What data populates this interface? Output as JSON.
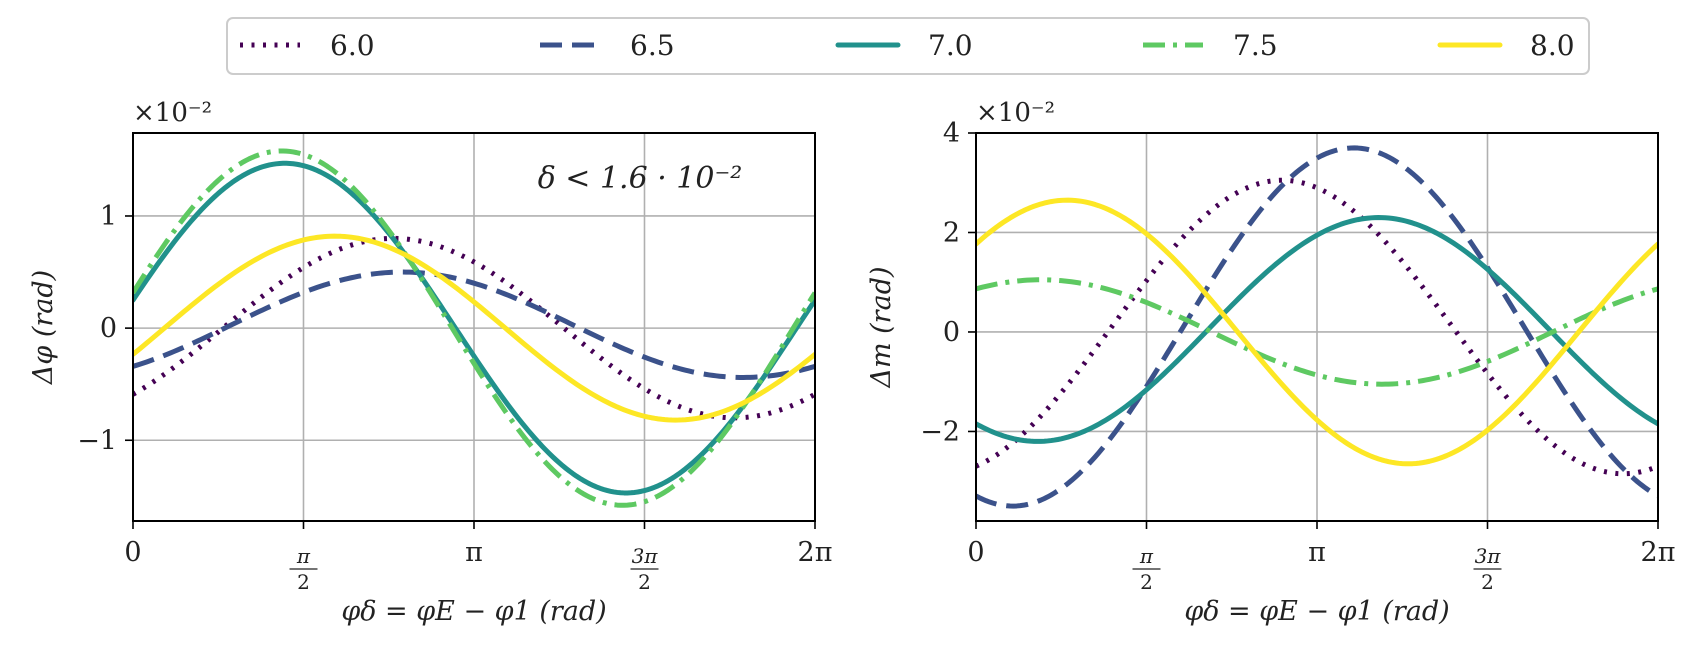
{
  "legend": {
    "entries": [
      {
        "label": "6.0",
        "color": "#440154",
        "dash": "dotted"
      },
      {
        "label": "6.5",
        "color": "#3b528b",
        "dash": "dashed"
      },
      {
        "label": "7.0",
        "color": "#21918c",
        "dash": "solid"
      },
      {
        "label": "7.5",
        "color": "#5ec962",
        "dash": "dashdot"
      },
      {
        "label": "8.0",
        "color": "#fde725",
        "dash": "solid"
      }
    ]
  },
  "chart_data": [
    {
      "type": "line",
      "id": "left",
      "xlabel": "φδ = φE − φ1 (rad)",
      "ylabel": "Δφ (rad)",
      "y_scale_label": "×10⁻²",
      "annotation": "δ < 1.6 · 10⁻²",
      "x_ticks": [
        {
          "value": 0,
          "label": "0"
        },
        {
          "value": 1.5708,
          "label": "π/2"
        },
        {
          "value": 3.1416,
          "label": "π"
        },
        {
          "value": 4.7124,
          "label": "3π/2"
        },
        {
          "value": 6.2832,
          "label": "2π"
        }
      ],
      "y_ticks": [
        {
          "value": -1,
          "label": "−1"
        },
        {
          "value": 0,
          "label": "0"
        },
        {
          "value": 1,
          "label": "1"
        }
      ],
      "xlim": [
        0,
        6.2832
      ],
      "ylim": [
        -1.72,
        1.74
      ],
      "grid": true,
      "series": [
        {
          "name": "6.0",
          "offset": 0,
          "amp": 0.8,
          "phase": 2.4
        },
        {
          "name": "6.5",
          "offset": 0.03,
          "amp": 0.47,
          "phase": 2.48
        },
        {
          "name": "7.0",
          "offset": 0,
          "amp": 1.47,
          "phase": 1.4
        },
        {
          "name": "7.5",
          "offset": 0,
          "amp": 1.58,
          "phase": 1.37
        },
        {
          "name": "8.0",
          "offset": 0,
          "amp": 0.82,
          "phase": 1.86
        }
      ]
    },
    {
      "type": "line",
      "id": "right",
      "xlabel": "φδ = φE − φ1 (rad)",
      "ylabel": "Δm (rad)",
      "y_scale_label": "×10⁻²",
      "x_ticks": [
        {
          "value": 0,
          "label": "0"
        },
        {
          "value": 1.5708,
          "label": "π/2"
        },
        {
          "value": 3.1416,
          "label": "π"
        },
        {
          "value": 4.7124,
          "label": "3π/2"
        },
        {
          "value": 6.2832,
          "label": "2π"
        }
      ],
      "y_ticks": [
        {
          "value": -2,
          "label": "−2"
        },
        {
          "value": 0,
          "label": "0"
        },
        {
          "value": 2,
          "label": "2"
        },
        {
          "value": 4,
          "label": "4"
        }
      ],
      "xlim": [
        0,
        6.2832
      ],
      "ylim": [
        -3.8,
        4.0
      ],
      "grid": true,
      "series": [
        {
          "name": "6.0",
          "offset": 0.1,
          "amp": 2.95,
          "phase": 2.82
        },
        {
          "name": "6.5",
          "offset": 0.1,
          "amp": 3.6,
          "phase": 3.48
        },
        {
          "name": "7.0",
          "offset": 0.05,
          "amp": 2.25,
          "phase": 3.71
        },
        {
          "name": "7.5",
          "offset": 0,
          "amp": 1.05,
          "phase": 0.6
        },
        {
          "name": "8.0",
          "offset": 0,
          "amp": 2.65,
          "phase": 0.84
        }
      ]
    }
  ]
}
